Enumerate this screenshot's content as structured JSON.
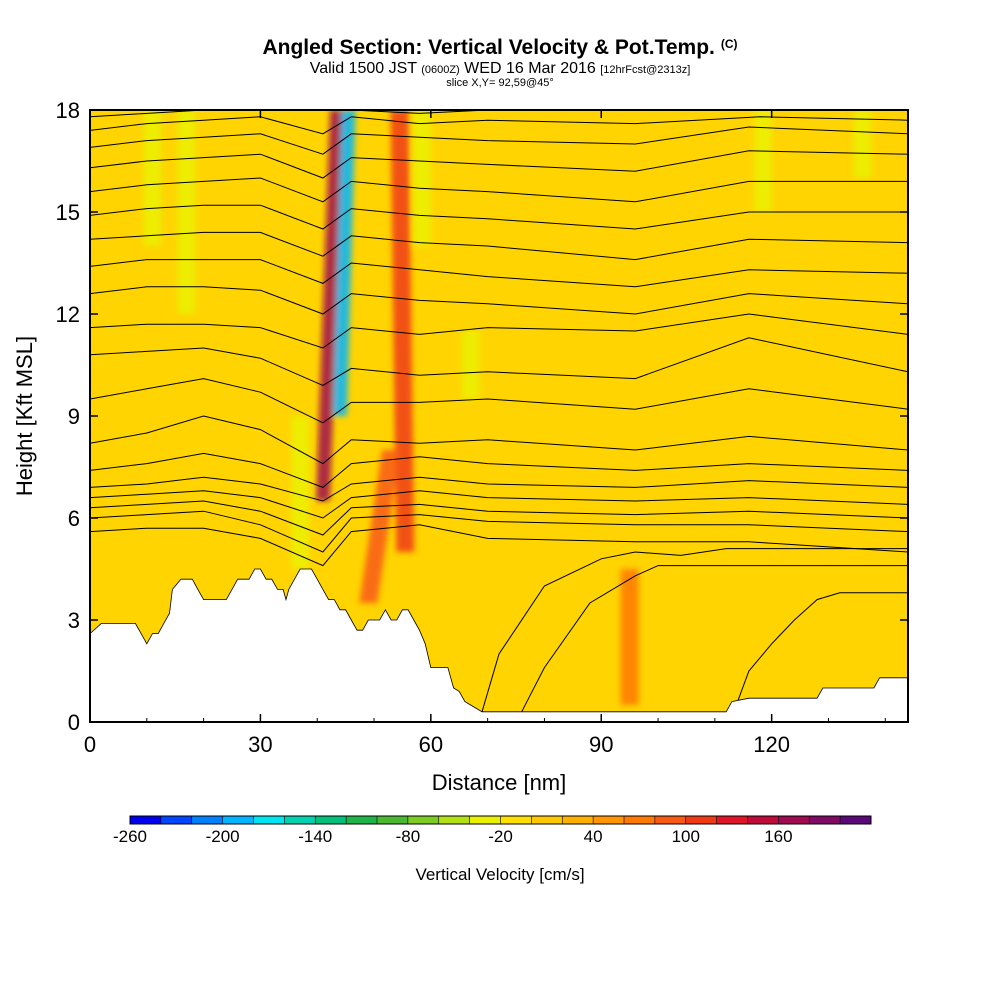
{
  "title": {
    "main": "Angled Section: Vertical Velocity & Pot.Temp.",
    "tag": "(C)"
  },
  "subtitle": {
    "prefix": "Valid 1500 JST",
    "utc": "(0600Z)",
    "date": "WED 16 Mar 2016",
    "forecast": "[12hrFcst@2313z]"
  },
  "slice_label": "slice X,Y= 92,59@45°",
  "colors": {
    "background_fill": "#ffd400",
    "terrain": "#ffffff",
    "contour": "#000000"
  },
  "chart_data": {
    "type": "heatmap",
    "xlabel": "Distance [nm]",
    "ylabel": "Height [Kft MSL]",
    "xlim": [
      0,
      144
    ],
    "ylim": [
      0,
      18
    ],
    "x_ticks": [
      0,
      30,
      60,
      90,
      120
    ],
    "y_ticks": [
      0,
      3,
      6,
      9,
      12,
      15,
      18
    ],
    "terrain_profile": {
      "x": [
        0,
        2,
        3,
        8,
        9,
        10,
        11,
        12,
        13,
        14,
        14.5,
        16,
        17,
        18,
        19,
        20,
        21,
        22,
        23,
        24,
        25,
        26,
        27,
        28,
        29,
        30,
        31,
        32,
        33,
        34,
        34.5,
        35,
        36,
        37,
        38,
        39,
        40,
        41,
        42,
        43,
        44,
        45,
        46,
        47,
        48,
        49,
        50,
        51,
        52,
        53,
        54,
        55,
        56,
        57,
        58,
        59,
        60,
        61,
        62,
        63,
        64,
        65,
        66,
        67,
        68,
        69,
        70,
        112,
        113,
        116,
        128,
        129,
        138,
        139,
        144
      ],
      "y": [
        2.6,
        2.9,
        2.9,
        2.9,
        2.6,
        2.3,
        2.6,
        2.6,
        2.9,
        3.2,
        3.9,
        4.2,
        4.2,
        4.2,
        3.9,
        3.6,
        3.6,
        3.6,
        3.6,
        3.6,
        3.9,
        4.2,
        4.2,
        4.2,
        4.5,
        4.5,
        4.2,
        4.2,
        3.9,
        3.9,
        3.6,
        3.9,
        4.2,
        4.5,
        4.5,
        4.5,
        4.2,
        3.9,
        3.6,
        3.6,
        3.3,
        3.3,
        3.0,
        2.7,
        2.7,
        3.0,
        3.0,
        3.0,
        3.3,
        3.0,
        3.0,
        3.3,
        3.3,
        3.0,
        2.7,
        2.3,
        1.6,
        1.6,
        1.6,
        1.6,
        1.0,
        0.9,
        0.6,
        0.5,
        0.4,
        0.3,
        0.3,
        0.3,
        0.6,
        0.7,
        0.7,
        1.0,
        1.0,
        1.3,
        1.3
      ]
    },
    "velocity_features": [
      {
        "name": "updraft",
        "x_bottom": 41,
        "x_top": 43.5,
        "y_bottom": 6.5,
        "y_top": 18,
        "value": 140
      },
      {
        "name": "downdraft",
        "x_bottom": 44,
        "x_top": 45.5,
        "y_bottom": 9,
        "y_top": 18,
        "value": -200
      },
      {
        "name": "updraft",
        "x_bottom": 55.5,
        "x_top": 54.5,
        "y_bottom": 5,
        "y_top": 18,
        "value": 80
      },
      {
        "name": "updraft",
        "x_bottom": 49,
        "x_top": 53,
        "y_bottom": 3.5,
        "y_top": 8,
        "value": 60
      },
      {
        "name": "downdraft",
        "x_bottom": 17,
        "x_top": 17,
        "y_bottom": 12,
        "y_top": 18,
        "value": -60
      },
      {
        "name": "downdraft",
        "x_bottom": 11,
        "x_top": 11,
        "y_bottom": 14,
        "y_top": 18,
        "value": -50
      },
      {
        "name": "downdraft",
        "x_bottom": 58.5,
        "x_top": 58.5,
        "y_bottom": 14,
        "y_top": 18,
        "value": -60
      },
      {
        "name": "downdraft",
        "x_bottom": 67,
        "x_top": 67,
        "y_bottom": 9.5,
        "y_top": 11.5,
        "value": -50
      },
      {
        "name": "downdraft",
        "x_bottom": 37,
        "x_top": 37,
        "y_bottom": 4.5,
        "y_top": 9,
        "value": -60
      },
      {
        "name": "downdraft",
        "x_bottom": 118.5,
        "x_top": 118.5,
        "y_bottom": 15,
        "y_top": 18,
        "value": -50
      },
      {
        "name": "downdraft",
        "x_bottom": 136,
        "x_top": 136,
        "y_bottom": 16,
        "y_top": 18,
        "value": -60
      },
      {
        "name": "updraft",
        "x_bottom": 95,
        "x_top": 95,
        "y_bottom": 0.5,
        "y_top": 4.5,
        "value": 40
      }
    ],
    "pot_temp_contours": [
      {
        "x": [
          0,
          20,
          41,
          46,
          58,
          70,
          96,
          118,
          144
        ],
        "y": [
          17.8,
          18.0,
          18.0,
          18.0,
          17.9,
          18.0,
          18.0,
          18.0,
          18.0
        ]
      },
      {
        "x": [
          0,
          10,
          20,
          30,
          41,
          46,
          58,
          70,
          96,
          118,
          144
        ],
        "y": [
          17.4,
          17.6,
          17.7,
          17.8,
          17.3,
          17.8,
          17.6,
          17.7,
          17.6,
          17.8,
          17.7
        ]
      },
      {
        "x": [
          0,
          10,
          20,
          30,
          41,
          46,
          58,
          70,
          96,
          116,
          144
        ],
        "y": [
          16.9,
          17.1,
          17.2,
          17.3,
          16.7,
          17.3,
          17.2,
          17.1,
          17.0,
          17.5,
          17.3
        ]
      },
      {
        "x": [
          0,
          10,
          20,
          30,
          41,
          46,
          58,
          70,
          96,
          116,
          144
        ],
        "y": [
          16.3,
          16.5,
          16.6,
          16.7,
          16.0,
          16.6,
          16.5,
          16.4,
          16.2,
          16.8,
          16.7
        ]
      },
      {
        "x": [
          0,
          10,
          20,
          30,
          41,
          46,
          58,
          70,
          96,
          116,
          144
        ],
        "y": [
          15.6,
          15.8,
          15.9,
          16.0,
          15.3,
          15.9,
          15.7,
          15.6,
          15.3,
          15.9,
          15.9
        ]
      },
      {
        "x": [
          0,
          10,
          20,
          30,
          41,
          46,
          58,
          70,
          96,
          116,
          144
        ],
        "y": [
          14.9,
          15.1,
          15.2,
          15.2,
          14.5,
          15.1,
          14.9,
          14.8,
          14.5,
          15.0,
          15.0
        ]
      },
      {
        "x": [
          0,
          10,
          20,
          30,
          41,
          46,
          58,
          70,
          96,
          116,
          144
        ],
        "y": [
          14.2,
          14.3,
          14.4,
          14.4,
          13.7,
          14.3,
          14.1,
          14.0,
          13.6,
          14.2,
          14.1
        ]
      },
      {
        "x": [
          0,
          10,
          20,
          30,
          41,
          46,
          58,
          70,
          96,
          116,
          144
        ],
        "y": [
          13.4,
          13.6,
          13.6,
          13.6,
          12.9,
          13.5,
          13.3,
          13.1,
          12.8,
          13.3,
          13.2
        ]
      },
      {
        "x": [
          0,
          10,
          20,
          30,
          41,
          46,
          58,
          70,
          96,
          116,
          144
        ],
        "y": [
          12.6,
          12.8,
          12.8,
          12.7,
          12.0,
          12.6,
          12.4,
          12.3,
          12.0,
          12.6,
          12.3
        ]
      },
      {
        "x": [
          0,
          10,
          20,
          30,
          41,
          46,
          58,
          70,
          96,
          116,
          144
        ],
        "y": [
          11.6,
          11.7,
          11.7,
          11.6,
          11.0,
          11.6,
          11.4,
          11.6,
          11.5,
          12.0,
          11.4
        ]
      },
      {
        "x": [
          0,
          10,
          20,
          30,
          41,
          46,
          58,
          70,
          96,
          116,
          144
        ],
        "y": [
          10.8,
          10.9,
          11.0,
          10.7,
          9.9,
          10.4,
          10.2,
          10.3,
          10.1,
          11.3,
          10.3
        ]
      },
      {
        "x": [
          0,
          10,
          20,
          30,
          41,
          46,
          58,
          70,
          96,
          116,
          144
        ],
        "y": [
          9.5,
          9.8,
          10.1,
          9.7,
          8.8,
          9.4,
          9.4,
          9.5,
          9.2,
          9.8,
          9.2
        ]
      },
      {
        "x": [
          0,
          10,
          20,
          30,
          41,
          46,
          58,
          70,
          96,
          116,
          144
        ],
        "y": [
          8.2,
          8.5,
          9.0,
          8.6,
          7.6,
          8.3,
          8.2,
          8.3,
          8.0,
          8.4,
          8.0
        ]
      },
      {
        "x": [
          0,
          10,
          20,
          30,
          41,
          46,
          58,
          70,
          96,
          116,
          144
        ],
        "y": [
          7.4,
          7.6,
          7.9,
          7.6,
          6.9,
          7.6,
          7.8,
          7.6,
          7.4,
          7.6,
          7.4
        ]
      },
      {
        "x": [
          0,
          10,
          20,
          30,
          41,
          46,
          58,
          70,
          96,
          116,
          144
        ],
        "y": [
          6.9,
          7.0,
          7.2,
          7.0,
          6.5,
          7.0,
          7.2,
          7.0,
          6.9,
          7.1,
          6.9
        ]
      },
      {
        "x": [
          0,
          10,
          20,
          30,
          41,
          46,
          58,
          70,
          96,
          116,
          144
        ],
        "y": [
          6.6,
          6.7,
          6.8,
          6.6,
          6.0,
          6.6,
          6.8,
          6.6,
          6.5,
          6.6,
          6.4
        ]
      },
      {
        "x": [
          0,
          10,
          20,
          30,
          41,
          46,
          58,
          70,
          96,
          116,
          144
        ],
        "y": [
          6.3,
          6.4,
          6.5,
          6.2,
          5.5,
          6.3,
          6.4,
          6.2,
          6.1,
          6.2,
          6.0
        ]
      },
      {
        "x": [
          0,
          10,
          20,
          30,
          41,
          46,
          58,
          70,
          96,
          116,
          144
        ],
        "y": [
          6.0,
          6.1,
          6.2,
          5.8,
          5.0,
          6.0,
          6.1,
          5.9,
          5.8,
          5.8,
          5.6
        ]
      },
      {
        "x": [
          0,
          10,
          20,
          30,
          41,
          46,
          58,
          70,
          96,
          116,
          144
        ],
        "y": [
          5.6,
          5.7,
          5.7,
          5.4,
          4.6,
          5.6,
          5.8,
          5.4,
          5.3,
          5.3,
          5.0
        ]
      },
      {
        "x": [
          69,
          72,
          80,
          90,
          96,
          104,
          112,
          144
        ],
        "y": [
          0.3,
          2.0,
          4.0,
          4.8,
          5.0,
          4.9,
          5.1,
          5.1
        ]
      },
      {
        "x": [
          76,
          80,
          88,
          96,
          100,
          104,
          144
        ],
        "y": [
          0.3,
          1.6,
          3.5,
          4.3,
          4.6,
          4.6,
          4.6
        ]
      },
      {
        "x": [
          114,
          116,
          120,
          124,
          128,
          132,
          144
        ],
        "y": [
          0.6,
          1.5,
          2.3,
          3.0,
          3.6,
          3.8,
          3.8
        ]
      }
    ],
    "legend": {
      "label": "Vertical Velocity [cm/s]",
      "tick_labels": [
        "-260",
        "-200",
        "-140",
        "-80",
        "-20",
        "40",
        "100",
        "160"
      ],
      "colors": [
        "#0000ee",
        "#0046ff",
        "#0080ff",
        "#00b4ff",
        "#00e6f0",
        "#00d2b0",
        "#00c07a",
        "#20b448",
        "#4cb832",
        "#7ccc24",
        "#b4e014",
        "#ebf000",
        "#ffe000",
        "#ffc800",
        "#ffb000",
        "#ff9600",
        "#ff7800",
        "#f85a14",
        "#f03a14",
        "#e01428",
        "#c00a3c",
        "#a00a50",
        "#800a64",
        "#5a0a78"
      ]
    }
  }
}
